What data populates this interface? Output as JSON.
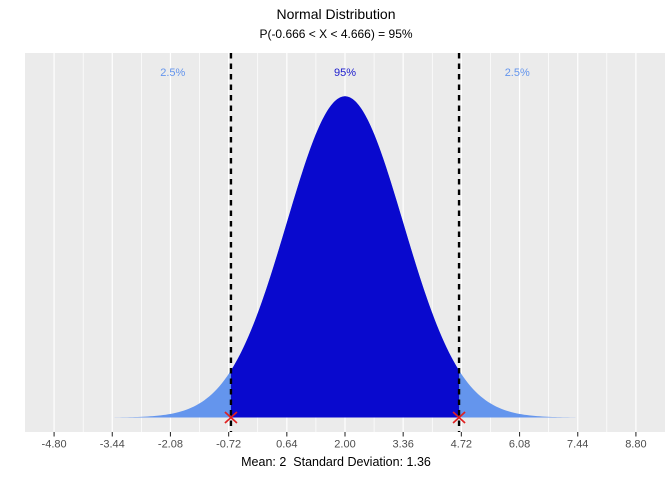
{
  "chart_data": {
    "type": "area",
    "title": "Normal Distribution",
    "subtitle": "P(-0.666 < X < 4.666) = 95%",
    "caption": "Mean: 2  Standard Deviation: 1.36",
    "distribution": "normal",
    "mean": 2,
    "sd": 1.36,
    "lower_bound": -0.666,
    "upper_bound": 4.666,
    "center_probability": "95%",
    "left_tail_probability": "2.5%",
    "right_tail_probability": "2.5%",
    "x_tick_values": [
      -4.8,
      -3.44,
      -2.08,
      -0.72,
      0.64,
      2,
      3.36,
      4.72,
      6.08,
      7.44,
      8.8
    ],
    "x_tick_labels": [
      "-4.80",
      "-3.44",
      "-2.08",
      "-0.72",
      "0.64",
      "2.00",
      "3.36",
      "4.72",
      "6.08",
      "7.44",
      "8.80"
    ],
    "xlim": [
      -5.48,
      9.48
    ],
    "grid": true,
    "legend": "none",
    "annotations": [
      {
        "text": "2.5%",
        "x": -2.026,
        "role": "left-tail-label",
        "color": "#6495ED"
      },
      {
        "text": "95%",
        "x": 2,
        "role": "center-label",
        "color": "#1C1CCD"
      },
      {
        "text": "2.5%",
        "x": 6.026,
        "role": "right-tail-label",
        "color": "#6495ED"
      }
    ],
    "colors": {
      "center_fill": "#0909CE",
      "tail_fill": "#6495ED",
      "panel_background": "#EBEBEB",
      "gridline_major": "#FFFFFF",
      "gridline_minor": "#FFFFFF",
      "bound_line": "#000000",
      "marker": "#E02020",
      "tick": "#333333",
      "tick_label": "#4D4D4D"
    }
  }
}
